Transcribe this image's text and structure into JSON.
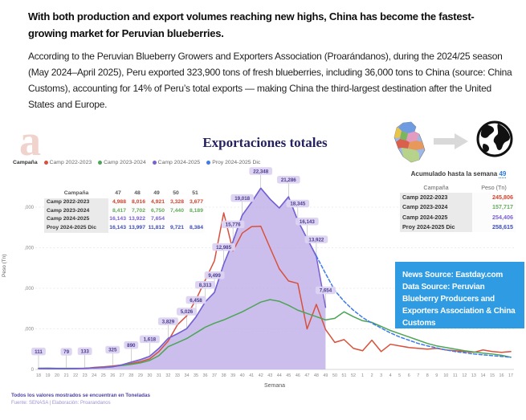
{
  "article": {
    "headline": "With both production and export volumes reaching new highs, China has become the fastest-growing market for Peruvian blueberries.",
    "paragraph": "According to the Peruvian Blueberry Growers and Exporters Association (Proarándanos), during the 2024/25 season (May 2024–April 2025), Peru exported 323,900 tons of fresh blueberries, including 36,000 tons to China (source: China Customs), accounting for 14% of Peru’s total exports — making China the third-largest destination after the United States and Europe."
  },
  "chart": {
    "logo_letter": "a",
    "title": "Exportaciones totales",
    "legend_label": "Campaña",
    "weekly_table": {
      "header": [
        "Campaña",
        "47",
        "48",
        "49",
        "50",
        "51"
      ],
      "rows": [
        {
          "label": "Camp 2022-2023",
          "color": "#d0432f",
          "values": [
            "4,988",
            "8,016",
            "4,921",
            "3,328",
            "3,677"
          ]
        },
        {
          "label": "Camp 2023-2024",
          "color": "#63ab5c",
          "values": [
            "8,417",
            "7,702",
            "6,750",
            "7,440",
            "8,189"
          ]
        },
        {
          "label": "Camp 2024-2025",
          "color": "#7a5fd0",
          "values": [
            "16,143",
            "13,922",
            "7,654",
            "",
            ""
          ]
        },
        {
          "label": "Proy 2024-2025 Dic",
          "color": "#3d4db7",
          "values": [
            "16,143",
            "13,997",
            "11,812",
            "9,721",
            "8,384"
          ]
        }
      ]
    },
    "accumulated": {
      "heading_prefix": "Acumulado hasta la semana ",
      "heading_week": "49",
      "header": [
        "Campaña",
        "Peso (Tn)"
      ],
      "rows": [
        {
          "label": "Camp 2022-2023",
          "value": "245,806",
          "color": "#d0432f"
        },
        {
          "label": "Camp 2023-2024",
          "value": "157,717",
          "color": "#63ab5c"
        },
        {
          "label": "Camp 2024-2025",
          "value": "254,406",
          "color": "#7a5fd0"
        },
        {
          "label": "Proy 2024-2025 Dic",
          "value": "258,615",
          "color": "#3d4db7"
        }
      ]
    },
    "icons": {
      "peru_map": "peru-map",
      "arrow": "arrow-right",
      "globe": "globe"
    },
    "news_box": {
      "bg": "#2e9be2",
      "line1": "News Source: Eastday.com",
      "line2": "Data Source: Peruvian Blueberry Producers and Exporters Association & China Customs"
    },
    "footer": {
      "note": "Todos los valores mostrados se encuentran en Toneladas",
      "source": "Fuente: SENASA | Elaboración: Proarandanos"
    }
  },
  "chart_data": {
    "type": "line",
    "title": "Exportaciones totales",
    "xlabel": "Semana",
    "ylabel": "Peso (Tn)",
    "ylim": [
      0,
      22500
    ],
    "ytick_values": [
      0,
      5000,
      10000,
      15000,
      20000
    ],
    "yticks": [
      "0",
      "5,000",
      "10,000",
      "15,000",
      "20,000"
    ],
    "x": [
      "18",
      "19",
      "20",
      "21",
      "22",
      "23",
      "24",
      "25",
      "26",
      "27",
      "28",
      "29",
      "30",
      "31",
      "32",
      "33",
      "34",
      "35",
      "36",
      "37",
      "38",
      "39",
      "40",
      "41",
      "42",
      "43",
      "44",
      "45",
      "46",
      "47",
      "48",
      "49",
      "50",
      "51",
      "52",
      "1",
      "2",
      "3",
      "4",
      "5",
      "6",
      "7",
      "8",
      "9",
      "10",
      "11",
      "12",
      "13",
      "14",
      "15",
      "16",
      "17"
    ],
    "series": [
      {
        "name": "Camp 2022-2023",
        "color": "#d8503c",
        "style": "solid",
        "values": [
          100,
          90,
          95,
          85,
          95,
          110,
          250,
          320,
          420,
          560,
          720,
          950,
          1300,
          2200,
          3500,
          5500,
          6600,
          8600,
          11000,
          13400,
          19300,
          14600,
          16800,
          17600,
          17650,
          15000,
          12400,
          10900,
          10600,
          4988,
          8016,
          4921,
          3328,
          3677,
          2600,
          2300,
          3600,
          2200,
          3100,
          2900,
          2700,
          2600,
          2500,
          2600,
          2400,
          2300,
          2200,
          2100,
          2400,
          2200,
          2100,
          2200
        ]
      },
      {
        "name": "Camp 2023-2024",
        "color": "#4ca455",
        "style": "solid",
        "values": [
          150,
          160,
          140,
          130,
          140,
          150,
          200,
          260,
          350,
          480,
          620,
          800,
          1100,
          1700,
          2800,
          3300,
          3800,
          4500,
          5200,
          5700,
          6100,
          6600,
          7100,
          7700,
          8300,
          8600,
          8400,
          7900,
          7300,
          6900,
          6500,
          6100,
          6300,
          7100,
          6500,
          6000,
          5800,
          5300,
          4800,
          4400,
          4000,
          3600,
          3200,
          2900,
          2700,
          2500,
          2300,
          2150,
          2000,
          1900,
          1750,
          1500
        ]
      },
      {
        "name": "Camp 2024-2025",
        "color": "#7a5fd0",
        "style": "solid",
        "area": true,
        "area_color": "#c3b3e9",
        "values": [
          111,
          95,
          85,
          79,
          100,
          133,
          180,
          240,
          325,
          560,
          890,
          1200,
          1618,
          2600,
          3829,
          4400,
          5026,
          6458,
          8313,
          9499,
          12985,
          15776,
          19018,
          20600,
          22348,
          21000,
          19900,
          21286,
          18345,
          16143,
          13922,
          7654,
          null,
          null,
          null,
          null,
          null,
          null,
          null,
          null,
          null,
          null,
          null,
          null,
          null,
          null,
          null,
          null,
          null,
          null,
          null,
          null
        ]
      },
      {
        "name": "Proy 2024-2025 Dic",
        "color": "#3e7be8",
        "style": "solid",
        "dash_from_index": 30,
        "values": [
          111,
          95,
          85,
          79,
          100,
          133,
          180,
          240,
          325,
          560,
          890,
          1200,
          1618,
          2600,
          3829,
          4400,
          5026,
          6458,
          8313,
          9499,
          12985,
          15776,
          19018,
          20600,
          22348,
          21000,
          19900,
          21286,
          18345,
          16143,
          13997,
          11812,
          9721,
          8384,
          7300,
          6400,
          5700,
          5100,
          4500,
          4000,
          3600,
          3200,
          2900,
          2650,
          2400,
          2200,
          2050,
          1900,
          1800,
          1700,
          1600,
          1500
        ]
      }
    ],
    "point_labels": [
      {
        "week": "18",
        "value": 111,
        "text": "111"
      },
      {
        "week": "21",
        "value": 79,
        "text": "79"
      },
      {
        "week": "23",
        "value": 133,
        "text": "133"
      },
      {
        "week": "26",
        "value": 325,
        "text": "325"
      },
      {
        "week": "28",
        "value": 890,
        "text": "890"
      },
      {
        "week": "30",
        "value": 1618,
        "text": "1,618"
      },
      {
        "week": "32",
        "value": 3829,
        "text": "3,829"
      },
      {
        "week": "34",
        "value": 5026,
        "text": "5,026"
      },
      {
        "week": "35",
        "value": 6458,
        "text": "6,458"
      },
      {
        "week": "36",
        "value": 8313,
        "text": "8,313"
      },
      {
        "week": "37",
        "value": 9499,
        "text": "9,499"
      },
      {
        "week": "38",
        "value": 12985,
        "text": "12,985"
      },
      {
        "week": "39",
        "value": 15776,
        "text": "15,776"
      },
      {
        "week": "40",
        "value": 19018,
        "text": "19,018"
      },
      {
        "week": "42",
        "value": 22348,
        "text": "22,348"
      },
      {
        "week": "45",
        "value": 21286,
        "text": "21,286"
      },
      {
        "week": "46",
        "value": 18345,
        "text": "18,345"
      },
      {
        "week": "47",
        "value": 16143,
        "text": "16,143"
      },
      {
        "week": "48",
        "value": 13922,
        "text": "13,922"
      },
      {
        "week": "49",
        "value": 7654,
        "text": "7,654"
      }
    ],
    "legend_position": "top-left",
    "grid": true
  }
}
